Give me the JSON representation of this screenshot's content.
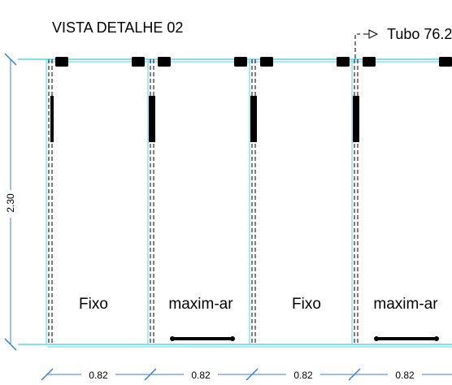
{
  "drawing": {
    "title": "VISTA DETALHE 02",
    "callout": "Tubo 76.2",
    "height_dimension": "2.30",
    "panels": [
      {
        "label": "Fixo",
        "width": "0.82",
        "type": "fixed"
      },
      {
        "label": "maxim-ar",
        "width": "0.82",
        "type": "awning"
      },
      {
        "label": "Fixo",
        "width": "0.82",
        "type": "fixed"
      },
      {
        "label": "maxim-ar",
        "width": "0.82",
        "type": "awning"
      }
    ]
  },
  "colors": {
    "frame_line": "#5ad6e6",
    "dimension_line": "#3a7fd0",
    "ink": "#000000"
  }
}
